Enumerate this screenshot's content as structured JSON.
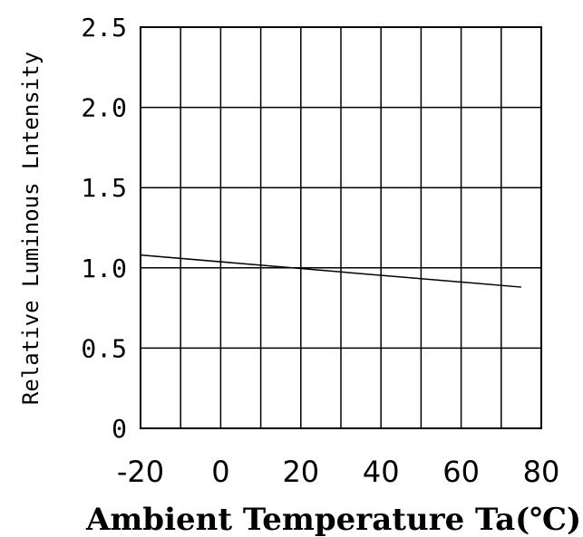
{
  "chart_data": {
    "type": "line",
    "xlabel": "Ambient Temperature Ta(℃)",
    "ylabel": "Relative Luminous Lntensity",
    "xlim": [
      -20,
      80
    ],
    "ylim": [
      0,
      2.5
    ],
    "x_ticks": [
      "-20",
      "0",
      "20",
      "40",
      "60",
      "80"
    ],
    "y_ticks": [
      "0",
      "0.5",
      "1.0",
      "1.5",
      "2.0",
      "2.5"
    ],
    "grid": true,
    "series": [
      {
        "x": [
          -20,
          75
        ],
        "values": [
          1.08,
          0.88
        ]
      }
    ]
  }
}
